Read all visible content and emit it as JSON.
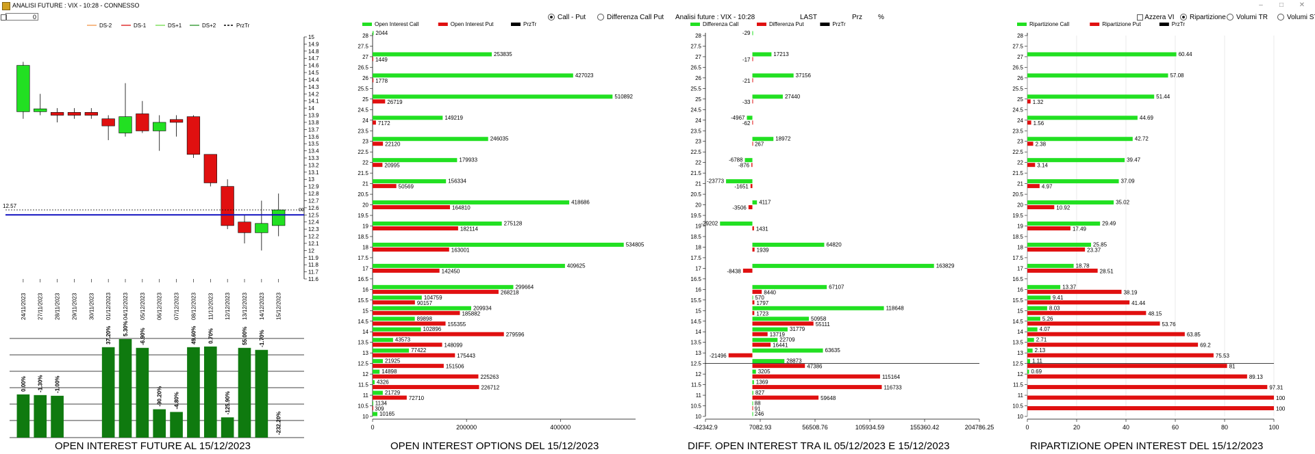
{
  "window": {
    "title": "ANALISI FUTURE : VIX - 10:28 - CONNESSO"
  },
  "top": {
    "counter_value": "0"
  },
  "panel1": {
    "legend": [
      {
        "name": "DS-2",
        "color": "#f4a460"
      },
      {
        "name": "DS-1",
        "color": "#e03030"
      },
      {
        "name": "DS+1",
        "color": "#80e060"
      },
      {
        "name": "DS+2",
        "color": "#40a040"
      },
      {
        "name": "PrzTr",
        "color": "#000000"
      }
    ],
    "caption": "OPEN INTEREST FUTURE AL 15/12/2023",
    "last_price_label": "12.57",
    "last_price": 12.57,
    "blue_level": 12.5,
    "price_value_tag": "00"
  },
  "panel2": {
    "legend": [
      {
        "name": "Open Interest Call",
        "color": "#22e022"
      },
      {
        "name": "Open Interest Put",
        "color": "#e01010"
      },
      {
        "name": "PrzTr",
        "color": "#000000"
      }
    ],
    "radios": [
      {
        "label": "Call - Put",
        "selected": true
      },
      {
        "label": "Differenza Call Put",
        "selected": false
      }
    ],
    "caption": "OPEN INTEREST OPTIONS DEL 15/12/2023"
  },
  "panel3": {
    "header": "Analisi future : VIX - 10:28",
    "last_label": "LAST",
    "prz_label": "Prz",
    "pct_label": "%",
    "legend": [
      {
        "name": "Differenza Call",
        "color": "#22e022"
      },
      {
        "name": "Differenza Put",
        "color": "#e01010"
      },
      {
        "name": "PrzTr",
        "color": "#000000"
      }
    ],
    "caption": "DIFF. OPEN INTEREST TRA IL 05/12/2023 E 15/12/2023"
  },
  "panel4": {
    "legend": [
      {
        "name": "Ripartizione Call",
        "color": "#22e022"
      },
      {
        "name": "Ripartizione Put",
        "color": "#e01010"
      },
      {
        "name": "PrzTr",
        "color": "#000000"
      }
    ],
    "checkbox_label": "Azzera VI",
    "radios": [
      {
        "label": "Ripartizione",
        "selected": true
      },
      {
        "label": "Volumi TR",
        "selected": false
      },
      {
        "label": "Volumi ST",
        "selected": false
      }
    ],
    "caption": "RIPARTIZIONE OPEN INTEREST DEL 15/12/2023"
  },
  "chart_data": [
    {
      "type": "candlestick",
      "categories": [
        "24/11/2023",
        "27/11/2023",
        "28/11/2023",
        "29/11/2023",
        "30/11/2023",
        "01/12/2023",
        "04/12/2023",
        "05/12/2023",
        "06/12/2023",
        "07/12/2023",
        "08/12/2023",
        "11/12/2023",
        "12/12/2023",
        "13/12/2023",
        "14/12/2023",
        "15/12/2023"
      ],
      "ylim": [
        11.6,
        15
      ],
      "yticks": [
        "15",
        "14.9",
        "14.8",
        "14.7",
        "14.6",
        "14.5",
        "14.4",
        "14.3",
        "14.2",
        "14.1",
        "14",
        "13.9",
        "13.8",
        "13.7",
        "13.6",
        "13.5",
        "13.4",
        "13.3",
        "13.2",
        "13.1",
        "13",
        "12.9",
        "12.8",
        "12.7",
        "12.6",
        "12.5",
        "12.4",
        "12.3",
        "12.2",
        "12.1",
        "12",
        "11.9",
        "11.8",
        "11.7",
        "11.6"
      ],
      "candles": [
        {
          "o": 13.95,
          "h": 14.65,
          "l": 13.85,
          "c": 14.6
        },
        {
          "o": 13.95,
          "h": 14.2,
          "l": 13.9,
          "c": 13.99
        },
        {
          "o": 13.94,
          "h": 14.0,
          "l": 13.8,
          "c": 13.9
        },
        {
          "o": 13.94,
          "h": 14.0,
          "l": 13.85,
          "c": 13.9
        },
        {
          "o": 13.94,
          "h": 14.0,
          "l": 13.85,
          "c": 13.9
        },
        {
          "o": 13.85,
          "h": 13.9,
          "l": 13.55,
          "c": 13.75
        },
        {
          "o": 13.65,
          "h": 14.35,
          "l": 13.6,
          "c": 13.88
        },
        {
          "o": 13.92,
          "h": 14.1,
          "l": 13.65,
          "c": 13.68
        },
        {
          "o": 13.68,
          "h": 13.9,
          "l": 13.4,
          "c": 13.8
        },
        {
          "o": 13.84,
          "h": 13.9,
          "l": 13.6,
          "c": 13.8
        },
        {
          "o": 13.88,
          "h": 13.9,
          "l": 13.3,
          "c": 13.35
        },
        {
          "o": 13.35,
          "h": 13.35,
          "l": 12.9,
          "c": 12.95
        },
        {
          "o": 12.9,
          "h": 13.0,
          "l": 12.3,
          "c": 12.35
        },
        {
          "o": 12.4,
          "h": 12.5,
          "l": 12.1,
          "c": 12.25
        },
        {
          "o": 12.25,
          "h": 12.7,
          "l": 12.0,
          "c": 12.38
        },
        {
          "o": 12.35,
          "h": 12.8,
          "l": 12.2,
          "c": 12.57
        }
      ]
    },
    {
      "type": "bar",
      "title": "OPEN INTEREST FUTURE AL 15/12/2023",
      "categories": [
        "24/11/2023",
        "27/11/2023",
        "28/11/2023",
        "29/11/2023",
        "30/11/2023",
        "01/12/2023",
        "04/12/2023",
        "05/12/2023",
        "06/12/2023",
        "07/12/2023",
        "08/12/2023",
        "11/12/2023",
        "12/12/2023",
        "13/12/2023",
        "14/12/2023",
        "15/12/2023"
      ],
      "values": [
        64,
        63,
        62,
        null,
        null,
        134,
        146,
        133,
        42,
        38,
        134,
        135,
        30,
        133,
        130,
        0
      ],
      "labels": [
        "0.00%",
        "-1.30%",
        "-1.00%",
        "",
        "",
        "37.20%",
        "5.30%",
        "-6.90%",
        "-90.20%",
        "-4.80%",
        "49.60%",
        "0.70%",
        "-125.90%",
        "55.00%",
        "-1.70%",
        "-232.20%"
      ]
    },
    {
      "type": "bar",
      "orientation": "horizontal",
      "title": "OPEN INTEREST OPTIONS DEL 15/12/2023",
      "strikes": [
        28,
        27,
        26,
        25,
        24,
        23,
        22,
        21,
        20,
        19,
        18,
        17,
        16,
        15.5,
        15,
        14.5,
        14,
        13.5,
        13,
        12.5,
        12,
        11.5,
        11,
        10.5,
        10
      ],
      "yticks": [
        "28",
        "27.5",
        "27",
        "26.5",
        "26",
        "25.5",
        "25",
        "24.5",
        "24",
        "23.5",
        "23",
        "22.5",
        "22",
        "21.5",
        "21",
        "20.5",
        "20",
        "19.5",
        "19",
        "18.5",
        "18",
        "17.5",
        "17",
        "16.5",
        "16",
        "15.5",
        "15",
        "14.5",
        "14",
        "13.5",
        "13",
        "12.5",
        "12",
        "11.5",
        "11",
        "10.5",
        "10"
      ],
      "xticks": [
        "0",
        "200000",
        "400000"
      ],
      "xlim": [
        0,
        560000
      ],
      "series": [
        {
          "name": "Open Interest Call",
          "values": [
            2044,
            253835,
            427023,
            510892,
            149219,
            246035,
            179933,
            156334,
            418686,
            275128,
            534805,
            409625,
            299664,
            104759,
            209934,
            89898,
            102896,
            43573,
            77422,
            21925,
            14898,
            4326,
            21729,
            1134,
            10165
          ]
        },
        {
          "name": "Open Interest Put",
          "values": [
            null,
            1449,
            1778,
            26719,
            7172,
            22120,
            20995,
            50569,
            164810,
            182114,
            163001,
            142450,
            268218,
            90157,
            185882,
            155355,
            279596,
            148099,
            175443,
            151506,
            225263,
            226712,
            72710,
            309,
            null
          ]
        }
      ]
    },
    {
      "type": "bar",
      "orientation": "horizontal",
      "title": "DIFF. OPEN INTEREST TRA IL 05/12/2023 E 15/12/2023",
      "strikes": [
        28,
        27,
        26,
        25,
        24,
        23,
        22,
        21,
        20,
        19,
        18,
        17,
        16,
        15.5,
        15,
        14.5,
        14,
        13.5,
        13,
        12.5,
        12,
        11.5,
        11,
        10.5,
        10
      ],
      "yticks": [
        "28",
        "27.5",
        "27",
        "26.5",
        "26",
        "25.5",
        "25",
        "24.5",
        "24",
        "23.5",
        "23",
        "22.5",
        "22",
        "21.5",
        "21",
        "20.5",
        "20",
        "19.5",
        "19",
        "18.5",
        "18",
        "17.5",
        "17",
        "16.5",
        "16",
        "15.5",
        "15",
        "14.5",
        "14",
        "13.5",
        "13",
        "12.5",
        "12",
        "11.5",
        "11",
        "10.5",
        "10"
      ],
      "xticks": [
        "-42342.9",
        "7082.93",
        "56508.76",
        "105934.59",
        "155360.42",
        "204786.25"
      ],
      "xlim": [
        -42342.9,
        204786.25
      ],
      "series": [
        {
          "name": "Differenza Call",
          "values": [
            -29,
            17213,
            37156,
            27440,
            -4967,
            18972,
            -6788,
            -23773,
            4117,
            -29202,
            64820,
            163829,
            67107,
            570,
            118648,
            50958,
            31779,
            22709,
            63635,
            28873,
            3205,
            1369,
            827,
            88,
            246
          ]
        },
        {
          "name": "Differenza Put",
          "values": [
            null,
            -17,
            -21,
            -33,
            -62,
            267,
            -876,
            -1651,
            -3506,
            1431,
            1939,
            -8438,
            8440,
            1797,
            1723,
            55111,
            13719,
            16441,
            -21496,
            47386,
            115164,
            116733,
            59648,
            91,
            null
          ]
        }
      ]
    },
    {
      "type": "bar",
      "orientation": "horizontal",
      "title": "RIPARTIZIONE OPEN INTEREST DEL 15/12/2023",
      "strikes": [
        28,
        27,
        26,
        25,
        24,
        23,
        22,
        21,
        20,
        19,
        18,
        17,
        16,
        15.5,
        15,
        14.5,
        14,
        13.5,
        13,
        12.5,
        12,
        11.5,
        11,
        10.5,
        10
      ],
      "yticks": [
        "28",
        "27.5",
        "27",
        "26.5",
        "26",
        "25.5",
        "25",
        "24.5",
        "24",
        "23.5",
        "23",
        "22.5",
        "22",
        "21.5",
        "21",
        "20.5",
        "20",
        "19.5",
        "19",
        "18.5",
        "18",
        "17.5",
        "17",
        "16.5",
        "16",
        "15.5",
        "15",
        "14.5",
        "14",
        "13.5",
        "13",
        "12.5",
        "12",
        "11.5",
        "11",
        "10.5",
        "10"
      ],
      "xticks": [
        "0",
        "20",
        "40",
        "60",
        "80",
        "100"
      ],
      "xlim": [
        0,
        100
      ],
      "series": [
        {
          "name": "Ripartizione Call",
          "values": [
            null,
            60.44,
            57.08,
            51.44,
            44.69,
            42.72,
            39.47,
            37.09,
            35.02,
            29.49,
            25.85,
            18.78,
            13.37,
            9.41,
            8.03,
            5.26,
            4.07,
            2.71,
            2.13,
            1.11,
            0.69,
            null,
            null,
            null,
            null
          ]
        },
        {
          "name": "Ripartizione Put",
          "values": [
            null,
            null,
            null,
            1.32,
            1.56,
            2.38,
            3.14,
            4.97,
            10.92,
            17.49,
            23.37,
            28.51,
            38.19,
            41.44,
            48.15,
            53.76,
            63.85,
            69.2,
            75.53,
            81,
            89.13,
            97.31,
            100,
            100,
            null
          ]
        }
      ]
    }
  ]
}
